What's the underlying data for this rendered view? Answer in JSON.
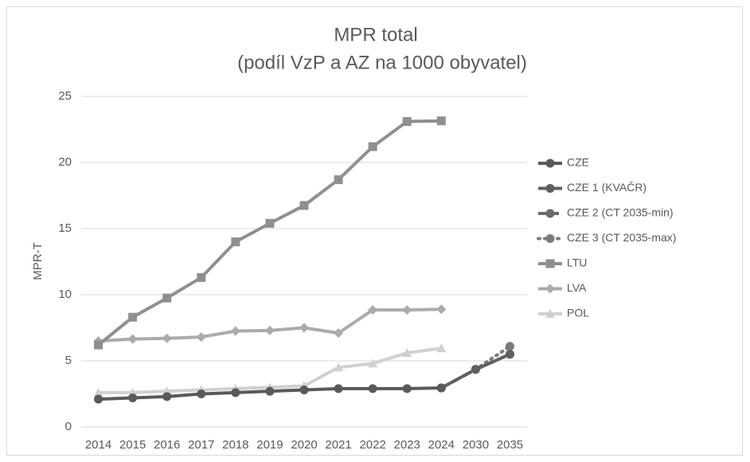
{
  "chart_data": {
    "type": "line",
    "title": [
      "MPR total",
      "(podíl VzP a AZ na 1000 obyvatel)"
    ],
    "y_label": "MPR-T",
    "categories": [
      "2014",
      "2015",
      "2016",
      "2017",
      "2018",
      "2019",
      "2020",
      "2021",
      "2022",
      "2023",
      "2024",
      "2030",
      "2035"
    ],
    "ylim": [
      0,
      25
    ],
    "yticks": [
      0,
      5,
      10,
      15,
      20,
      25
    ],
    "grid": true,
    "legend": "right",
    "series": [
      {
        "name": "CZE",
        "color": "#595959",
        "dash": "solid",
        "marker": "circle",
        "values": [
          2.1,
          2.2,
          2.3,
          2.5,
          2.6,
          2.7,
          2.8,
          2.9,
          2.9,
          2.9,
          2.95,
          null,
          null
        ]
      },
      {
        "name": "CZE 1 (KVAČR)",
        "color": "#606060",
        "dash": "solid",
        "marker": "circle",
        "values": [
          null,
          null,
          null,
          null,
          null,
          null,
          null,
          null,
          null,
          null,
          2.95,
          4.35,
          5.5
        ]
      },
      {
        "name": "CZE 2 (CT 2035-min)",
        "color": "#6a6a6a",
        "dash": "dashed",
        "marker": "circle",
        "values": [
          null,
          null,
          null,
          null,
          null,
          null,
          null,
          null,
          null,
          null,
          2.95,
          4.35,
          5.5
        ]
      },
      {
        "name": "CZE 3 (CT 2035-max)",
        "color": "#7a7a7a",
        "dash": "dotted",
        "marker": "circle",
        "values": [
          null,
          null,
          null,
          null,
          null,
          null,
          null,
          null,
          null,
          null,
          2.95,
          4.35,
          6.1
        ]
      },
      {
        "name": "LTU",
        "color": "#8f8f8f",
        "dash": "solid",
        "marker": "square",
        "values": [
          6.2,
          8.3,
          9.75,
          11.3,
          14.0,
          15.4,
          16.75,
          18.7,
          21.2,
          23.1,
          23.15,
          null,
          null
        ]
      },
      {
        "name": "LVA",
        "color": "#ababab",
        "dash": "solid",
        "marker": "diamond",
        "values": [
          6.5,
          6.65,
          6.7,
          6.8,
          7.25,
          7.3,
          7.5,
          7.1,
          8.85,
          8.85,
          8.9,
          null,
          null
        ]
      },
      {
        "name": "POL",
        "color": "#d0d0d0",
        "dash": "solid",
        "marker": "triangle",
        "values": [
          2.6,
          2.6,
          2.7,
          2.8,
          2.9,
          3.0,
          3.1,
          4.5,
          4.8,
          5.6,
          5.95,
          null,
          null
        ]
      }
    ]
  }
}
